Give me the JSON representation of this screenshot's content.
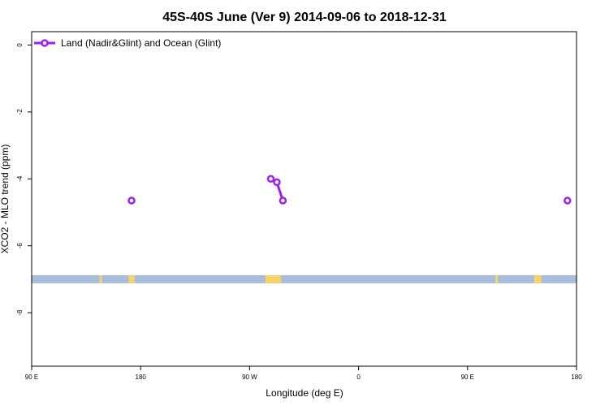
{
  "chart_data": {
    "type": "line",
    "title": "45S-40S June (Ver 9)   2014-09-06 to 2018-12-31",
    "xlabel": "Longitude (deg E)",
    "ylabel": "XCO2 - MLO trend (ppm)",
    "x_ticks": [
      {
        "value": 90,
        "label": "90 E"
      },
      {
        "value": 180,
        "label": "180"
      },
      {
        "value": 270,
        "label": "90 W"
      },
      {
        "value": 360,
        "label": "0"
      },
      {
        "value": 450,
        "label": "90 E"
      },
      {
        "value": 540,
        "label": "180"
      }
    ],
    "y_ticks": [
      {
        "value": 0,
        "label": "0"
      },
      {
        "value": -2,
        "label": "-2"
      },
      {
        "value": -4,
        "label": "-4"
      },
      {
        "value": -6,
        "label": "-6"
      },
      {
        "value": -8,
        "label": "-8"
      }
    ],
    "xlim": [
      90,
      540
    ],
    "ylim": [
      -9.6,
      0.4
    ],
    "grid": false,
    "legend_position": "top-left",
    "series": [
      {
        "name": "Land (Nadir&Glint) and Ocean (Glint)",
        "color": "#a020f0",
        "segments": [
          [
            {
              "x": 172.5,
              "y": -4.65
            }
          ],
          [
            {
              "x": 287.5,
              "y": -4.0
            },
            {
              "x": 292.5,
              "y": -4.1
            },
            {
              "x": 297.5,
              "y": -4.65
            }
          ],
          [
            {
              "x": 532.5,
              "y": -4.65
            }
          ]
        ]
      }
    ],
    "map_strip": {
      "y": -7.0,
      "ocean_color": "#a6bddb",
      "land_color": "#f6d365",
      "land_ranges": [
        [
          146,
          148
        ],
        [
          170,
          175
        ],
        [
          283,
          296
        ],
        [
          473,
          475
        ],
        [
          505,
          511
        ]
      ]
    }
  }
}
